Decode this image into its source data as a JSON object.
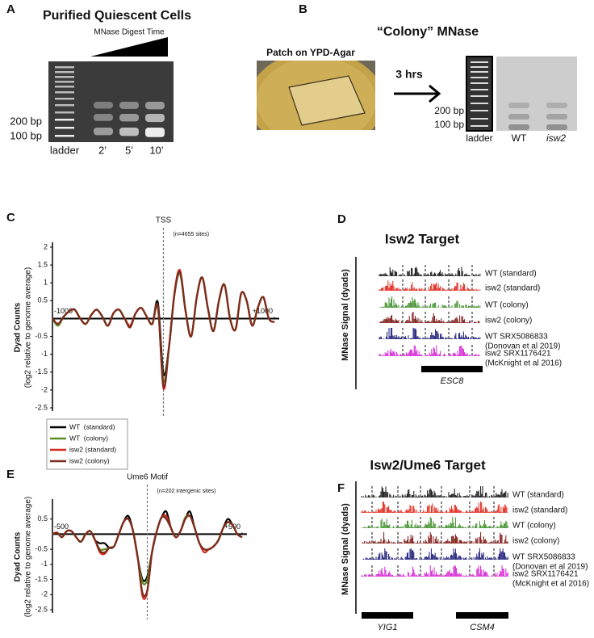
{
  "panels": {
    "a": {
      "letter": "A",
      "title": "Purified Quiescent Cells",
      "subtitle": "MNase Digest Time",
      "markers": [
        "200 bp",
        "100 bp"
      ],
      "lanes": [
        "ladder",
        "2’",
        "5’",
        "10’"
      ]
    },
    "b": {
      "letter": "B",
      "title": "“Colony” MNase",
      "photo_label": "Patch on YPD-Agar",
      "arrow_label": "3 hrs",
      "markers": [
        "200 bp",
        "100 bp"
      ],
      "lanes": [
        "ladder",
        "WT",
        "isw2"
      ]
    },
    "d": {
      "letter": "D",
      "title": "Isw2 Target",
      "y_label": "MNase Signal (dyads)",
      "tracks": [
        [
          "WT (standard)"
        ],
        [
          "isw2 (standard)"
        ],
        [
          "WT (colony)"
        ],
        [
          "isw2 (colony)"
        ],
        [
          "WT SRX5086833",
          "(Donovan et al 2019)"
        ],
        [
          "isw2 SRX1176421",
          "(McKnight et al 2016)"
        ]
      ],
      "genes": [
        "ESC8"
      ]
    },
    "f": {
      "letter": "F",
      "title": "Isw2/Ume6 Target",
      "y_label": "MNase Signal (dyads)",
      "tracks": [
        [
          "WT (standard)"
        ],
        [
          "isw2 (standard)"
        ],
        [
          "WT (colony)"
        ],
        [
          "isw2 (colony)"
        ],
        [
          "WT SRX5086833",
          "(Donovan et al 2019)"
        ],
        [
          "isw2 SRX1176421",
          "(McKnight et al 2016)"
        ]
      ],
      "genes": [
        "YIG1",
        "CSM4"
      ]
    }
  },
  "chart_data": [
    {
      "type": "line",
      "letter": "C",
      "title": "TSS",
      "subtitle": "(n=4655 sites)",
      "y_label": "Dyad Counts",
      "y_sublabel": "(log2 relative to genome average)",
      "x": [
        -1000,
        -950,
        -900,
        -850,
        -800,
        -750,
        -700,
        -650,
        -600,
        -550,
        -500,
        -450,
        -400,
        -350,
        -300,
        -250,
        -200,
        -150,
        -100,
        -50,
        0,
        50,
        100,
        150,
        200,
        250,
        300,
        350,
        400,
        450,
        500,
        550,
        600,
        650,
        700,
        750,
        800,
        850,
        900,
        950,
        1000
      ],
      "xlim": [
        -1000,
        1000
      ],
      "xticks": [
        {
          "value": -1000,
          "label": "-1000"
        },
        {
          "value": 1000,
          "label": "+1000"
        }
      ],
      "ylim": [
        -2.5,
        2
      ],
      "yticks": [
        2,
        1.5,
        1,
        0.5,
        -0.5,
        -1,
        -1.5,
        -2,
        -2.5
      ],
      "legend": "below",
      "series": [
        {
          "name": "WT  (standard)",
          "color": "#000000",
          "values": [
            0.0,
            -0.15,
            0.05,
            0.2,
            0.25,
            0.0,
            -0.15,
            0.1,
            0.25,
            0.05,
            -0.2,
            0.15,
            0.25,
            0.0,
            -0.2,
            0.15,
            0.3,
            0.05,
            -0.15,
            0.45,
            -1.55,
            -0.8,
            0.7,
            1.25,
            0.2,
            -0.5,
            0.6,
            1.15,
            0.3,
            -0.35,
            0.5,
            0.95,
            0.0,
            -0.3,
            0.7,
            0.5,
            -0.2,
            0.3,
            0.6,
            0.0,
            -0.1
          ]
        },
        {
          "name": "WT  (colony)",
          "color": "#5b8c2a",
          "values": [
            0.0,
            -0.2,
            0.05,
            0.2,
            0.25,
            0.0,
            -0.15,
            0.1,
            0.25,
            0.05,
            -0.2,
            0.15,
            0.25,
            0.0,
            -0.2,
            0.15,
            0.3,
            0.05,
            -0.15,
            0.3,
            -1.75,
            -0.8,
            0.7,
            1.25,
            0.2,
            -0.5,
            0.6,
            1.15,
            0.3,
            -0.35,
            0.5,
            0.95,
            0.0,
            -0.3,
            0.7,
            0.5,
            -0.2,
            0.3,
            0.6,
            0.0,
            -0.1
          ]
        },
        {
          "name": "isw2 (standard)",
          "color": "#d22a1f",
          "values": [
            0.0,
            -0.15,
            0.05,
            0.2,
            0.25,
            0.0,
            -0.15,
            0.1,
            0.25,
            0.05,
            -0.2,
            0.15,
            0.25,
            0.0,
            -0.2,
            0.15,
            0.3,
            0.05,
            -0.15,
            0.35,
            -1.95,
            -0.8,
            0.75,
            1.35,
            0.2,
            -0.5,
            0.6,
            1.15,
            0.3,
            -0.35,
            0.5,
            0.95,
            0.0,
            -0.3,
            0.7,
            0.5,
            -0.2,
            0.3,
            0.6,
            0.0,
            -0.1
          ]
        },
        {
          "name": "isw2 (colony)",
          "color": "#7b2d1c",
          "values": [
            0.0,
            -0.15,
            0.05,
            0.2,
            0.25,
            0.0,
            -0.15,
            0.1,
            0.25,
            0.05,
            -0.2,
            0.15,
            0.25,
            0.0,
            -0.25,
            0.15,
            0.3,
            0.05,
            -0.15,
            0.35,
            -1.9,
            -0.8,
            0.7,
            1.3,
            0.2,
            -0.5,
            0.6,
            1.15,
            0.3,
            -0.35,
            0.5,
            0.95,
            0.0,
            -0.3,
            0.7,
            0.5,
            -0.2,
            0.3,
            0.6,
            0.0,
            -0.1
          ]
        }
      ]
    },
    {
      "type": "line",
      "letter": "E",
      "title": "Ume6 Motif",
      "subtitle": "(n=202 intergenic sites)",
      "y_label": "Dyad Counts",
      "y_sublabel": "(log2 relative to genome average)",
      "x": [
        -500,
        -475,
        -450,
        -425,
        -400,
        -375,
        -350,
        -325,
        -300,
        -275,
        -250,
        -225,
        -200,
        -175,
        -150,
        -125,
        -100,
        -75,
        -50,
        -25,
        0,
        25,
        50,
        75,
        100,
        125,
        150,
        175,
        200,
        225,
        250,
        275,
        300,
        325,
        350,
        375,
        400,
        425,
        450,
        475,
        500
      ],
      "xlim": [
        -500,
        500
      ],
      "xticks": [
        {
          "value": -500,
          "label": "-500"
        },
        {
          "value": 500,
          "label": "+500"
        }
      ],
      "ylim": [
        -2.5,
        1
      ],
      "yticks": [
        0.5,
        -0.5,
        -1,
        -1.5,
        -2,
        -2.5
      ],
      "series": [
        {
          "name": "WT  (standard)",
          "color": "#000000",
          "values": [
            0.0,
            0.05,
            -0.1,
            0.1,
            0.1,
            -0.1,
            -0.25,
            0.0,
            0.1,
            -0.2,
            -0.3,
            -0.3,
            -0.45,
            -0.4,
            0.0,
            0.4,
            0.6,
            0.1,
            -0.8,
            -1.5,
            -1.4,
            -0.6,
            0.1,
            0.55,
            0.75,
            0.2,
            -0.1,
            0.1,
            0.5,
            0.75,
            0.2,
            -0.3,
            -0.5,
            -0.5,
            -0.4,
            -0.2,
            0.2,
            0.5,
            0.3,
            0.0,
            -0.1
          ]
        },
        {
          "name": "WT  (colony)",
          "color": "#5b8c2a",
          "values": [
            0.0,
            0.05,
            -0.1,
            0.1,
            0.1,
            -0.1,
            -0.25,
            0.0,
            0.1,
            -0.2,
            -0.5,
            -0.5,
            -0.45,
            -0.4,
            0.0,
            0.4,
            0.5,
            0.1,
            -0.8,
            -1.6,
            -1.5,
            -0.6,
            0.1,
            0.55,
            0.55,
            0.2,
            -0.1,
            0.1,
            0.55,
            0.6,
            0.2,
            -0.3,
            -0.5,
            -0.5,
            -0.4,
            -0.2,
            0.2,
            0.4,
            0.3,
            0.0,
            -0.1
          ]
        },
        {
          "name": "isw2 (standard)",
          "color": "#d22a1f",
          "values": [
            0.0,
            0.05,
            -0.1,
            0.1,
            0.1,
            -0.1,
            -0.25,
            0.0,
            0.1,
            -0.2,
            -0.6,
            -0.65,
            -0.45,
            -0.4,
            0.0,
            0.4,
            0.5,
            0.1,
            -0.8,
            -2.05,
            -1.9,
            -0.6,
            0.1,
            0.55,
            0.6,
            0.2,
            -0.1,
            0.1,
            0.5,
            0.6,
            0.2,
            -0.3,
            -0.6,
            -0.5,
            -0.4,
            -0.2,
            0.2,
            0.4,
            0.3,
            0.0,
            -0.1
          ]
        },
        {
          "name": "isw2 (colony)",
          "color": "#7b2d1c",
          "values": [
            0.0,
            0.05,
            -0.1,
            0.1,
            0.1,
            -0.1,
            -0.25,
            0.0,
            0.1,
            -0.2,
            -0.55,
            -0.6,
            -0.45,
            -0.4,
            0.0,
            0.4,
            0.5,
            0.1,
            -0.8,
            -1.95,
            -1.85,
            -0.6,
            0.1,
            0.55,
            0.5,
            0.2,
            -0.1,
            0.1,
            0.5,
            0.6,
            0.2,
            -0.3,
            -0.5,
            -0.5,
            -0.4,
            -0.2,
            0.2,
            0.4,
            0.3,
            0.0,
            -0.1
          ]
        }
      ]
    }
  ]
}
